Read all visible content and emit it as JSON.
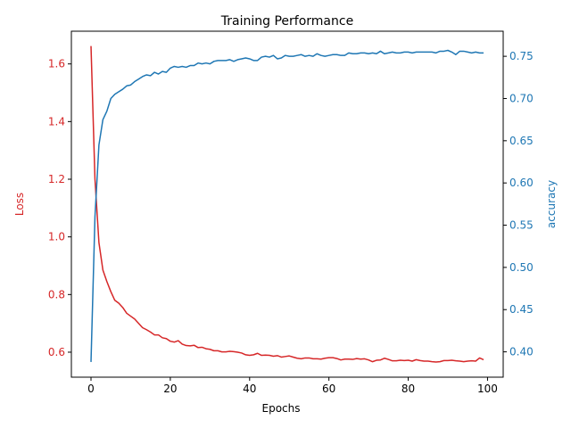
{
  "chart_data": {
    "type": "line",
    "title": "Training Performance",
    "xlabel": "Epochs",
    "xlim": [
      -4.95,
      103.95
    ],
    "xticks": [
      0,
      20,
      40,
      60,
      80,
      100
    ],
    "grid": false,
    "legend": "none",
    "left_axis": {
      "label": "Loss",
      "color": "#d62728",
      "ylim": [
        0.5133,
        1.7135
      ],
      "ticks": [
        0.6,
        0.8,
        1.0,
        1.2,
        1.4,
        1.6
      ],
      "tick_labels": [
        "0.6",
        "0.8",
        "1.0",
        "1.2",
        "1.4",
        "1.6"
      ]
    },
    "right_axis": {
      "label": "accuracy",
      "color": "#1f77b4",
      "ylim": [
        0.37,
        0.7797
      ],
      "ticks": [
        0.4,
        0.45,
        0.5,
        0.55,
        0.6,
        0.65,
        0.7,
        0.75
      ],
      "tick_labels": [
        "0.40",
        "0.45",
        "0.50",
        "0.55",
        "0.60",
        "0.65",
        "0.70",
        "0.75"
      ]
    },
    "series": [
      {
        "axis": "left",
        "color": "#d62728",
        "x": [
          0,
          1,
          2,
          3,
          4,
          5,
          6,
          7,
          8,
          9,
          10,
          11,
          12,
          13,
          14,
          15,
          16,
          17,
          18,
          19,
          20,
          21,
          22,
          23,
          24,
          25,
          26,
          27,
          28,
          29,
          30,
          31,
          32,
          33,
          34,
          35,
          36,
          37,
          38,
          39,
          40,
          41,
          42,
          43,
          44,
          45,
          46,
          47,
          48,
          49,
          50,
          51,
          52,
          53,
          54,
          55,
          56,
          57,
          58,
          59,
          60,
          61,
          62,
          63,
          64,
          65,
          66,
          67,
          68,
          69,
          70,
          71,
          72,
          73,
          74,
          75,
          76,
          77,
          78,
          79,
          80,
          81,
          82,
          83,
          84,
          85,
          86,
          87,
          88,
          89,
          90,
          91,
          92,
          93,
          94,
          95,
          96,
          97,
          98,
          99
        ],
        "values": [
          1.662,
          1.2,
          0.98,
          0.885,
          0.845,
          0.81,
          0.78,
          0.77,
          0.755,
          0.735,
          0.725,
          0.715,
          0.7,
          0.685,
          0.678,
          0.67,
          0.66,
          0.66,
          0.65,
          0.647,
          0.638,
          0.635,
          0.64,
          0.628,
          0.623,
          0.622,
          0.624,
          0.616,
          0.617,
          0.612,
          0.61,
          0.605,
          0.605,
          0.601,
          0.601,
          0.603,
          0.602,
          0.6,
          0.597,
          0.591,
          0.589,
          0.591,
          0.596,
          0.589,
          0.59,
          0.589,
          0.586,
          0.588,
          0.583,
          0.585,
          0.587,
          0.583,
          0.579,
          0.577,
          0.58,
          0.58,
          0.577,
          0.577,
          0.576,
          0.579,
          0.581,
          0.581,
          0.578,
          0.573,
          0.576,
          0.576,
          0.575,
          0.578,
          0.576,
          0.577,
          0.573,
          0.567,
          0.572,
          0.573,
          0.579,
          0.575,
          0.57,
          0.57,
          0.572,
          0.571,
          0.572,
          0.569,
          0.574,
          0.571,
          0.569,
          0.569,
          0.567,
          0.566,
          0.567,
          0.571,
          0.571,
          0.572,
          0.57,
          0.569,
          0.567,
          0.569,
          0.57,
          0.569,
          0.58,
          0.574
        ]
      },
      {
        "axis": "right",
        "color": "#1f77b4",
        "x": [
          0,
          1,
          2,
          3,
          4,
          5,
          6,
          7,
          8,
          9,
          10,
          11,
          12,
          13,
          14,
          15,
          16,
          17,
          18,
          19,
          20,
          21,
          22,
          23,
          24,
          25,
          26,
          27,
          28,
          29,
          30,
          31,
          32,
          33,
          34,
          35,
          36,
          37,
          38,
          39,
          40,
          41,
          42,
          43,
          44,
          45,
          46,
          47,
          48,
          49,
          50,
          51,
          52,
          53,
          54,
          55,
          56,
          57,
          58,
          59,
          60,
          61,
          62,
          63,
          64,
          65,
          66,
          67,
          68,
          69,
          70,
          71,
          72,
          73,
          74,
          75,
          76,
          77,
          78,
          79,
          80,
          81,
          82,
          83,
          84,
          85,
          86,
          87,
          88,
          89,
          90,
          91,
          92,
          93,
          94,
          95,
          96,
          97,
          98,
          99
        ],
        "values": [
          0.388,
          0.56,
          0.645,
          0.675,
          0.685,
          0.7,
          0.705,
          0.708,
          0.711,
          0.715,
          0.716,
          0.72,
          0.723,
          0.726,
          0.728,
          0.727,
          0.731,
          0.729,
          0.732,
          0.731,
          0.736,
          0.738,
          0.737,
          0.738,
          0.737,
          0.739,
          0.739,
          0.742,
          0.741,
          0.742,
          0.741,
          0.744,
          0.745,
          0.745,
          0.745,
          0.746,
          0.744,
          0.746,
          0.747,
          0.748,
          0.747,
          0.745,
          0.745,
          0.749,
          0.75,
          0.749,
          0.751,
          0.747,
          0.748,
          0.751,
          0.75,
          0.75,
          0.751,
          0.752,
          0.75,
          0.751,
          0.75,
          0.753,
          0.751,
          0.75,
          0.751,
          0.752,
          0.752,
          0.751,
          0.751,
          0.754,
          0.753,
          0.753,
          0.754,
          0.754,
          0.753,
          0.754,
          0.753,
          0.756,
          0.753,
          0.754,
          0.755,
          0.754,
          0.754,
          0.755,
          0.755,
          0.754,
          0.755,
          0.755,
          0.755,
          0.755,
          0.755,
          0.754,
          0.756,
          0.756,
          0.757,
          0.755,
          0.752,
          0.756,
          0.756,
          0.755,
          0.754,
          0.755,
          0.754,
          0.754
        ]
      }
    ]
  }
}
